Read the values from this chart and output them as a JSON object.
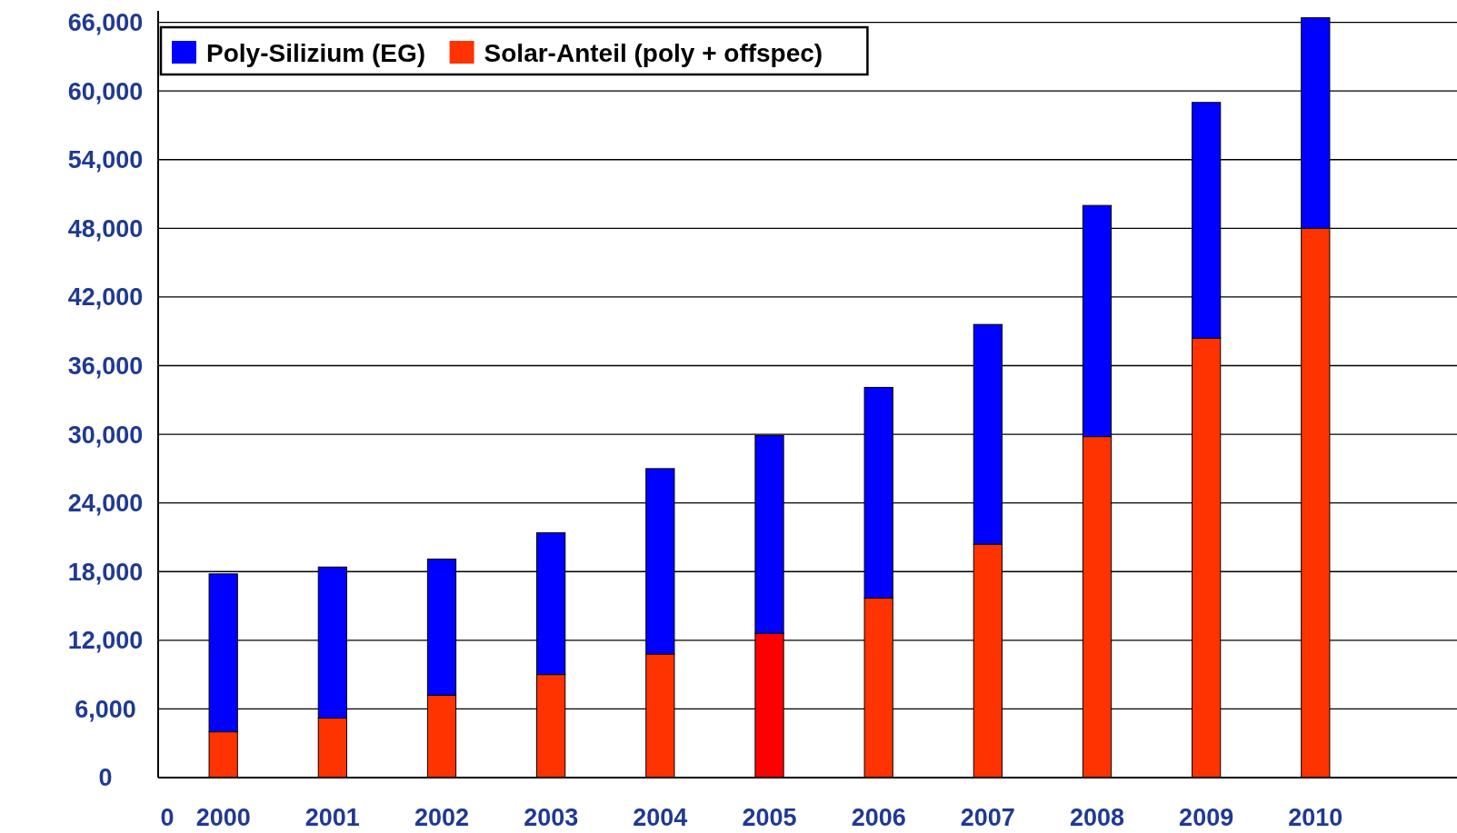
{
  "chart_data": {
    "type": "bar",
    "stacked": true,
    "categories": [
      "2000",
      "2001",
      "2002",
      "2003",
      "2004",
      "2005",
      "2006",
      "2007",
      "2008",
      "2009",
      "2010"
    ],
    "series": [
      {
        "name": "Solar-Anteil (poly + offspec)",
        "color": "#ff3300",
        "colors": [
          "#ff3300",
          "#ff3300",
          "#ff3300",
          "#ff3300",
          "#ff3300",
          "#ff0000",
          "#ff3300",
          "#ff3300",
          "#ff3300",
          "#ff3300",
          "#ff3300"
        ],
        "values": [
          4000,
          5200,
          7200,
          9000,
          10800,
          12600,
          15700,
          20400,
          29800,
          38400,
          48000
        ]
      },
      {
        "name": "Poly-Silizium (EG)",
        "color": "#0000ff",
        "values": [
          13800,
          13200,
          11900,
          12400,
          16200,
          17300,
          18400,
          19200,
          20200,
          20600,
          18400
        ]
      }
    ],
    "ylim": [
      0,
      67000
    ],
    "yticks": [
      {
        "value": 0,
        "label": "0"
      },
      {
        "value": 6000,
        "label": "6,000"
      },
      {
        "value": 12000,
        "label": "12,000"
      },
      {
        "value": 18000,
        "label": "18,000"
      },
      {
        "value": 24000,
        "label": "24,000"
      },
      {
        "value": 30000,
        "label": "30,000"
      },
      {
        "value": 36000,
        "label": "36,000"
      },
      {
        "value": 42000,
        "label": "42,000"
      },
      {
        "value": 48000,
        "label": "48,000"
      },
      {
        "value": 54000,
        "label": "54,000"
      },
      {
        "value": 60000,
        "label": "60,000"
      },
      {
        "value": 66000,
        "label": "66,000"
      }
    ],
    "grid": "y",
    "legend": "top left",
    "annotations": [
      "0"
    ]
  }
}
